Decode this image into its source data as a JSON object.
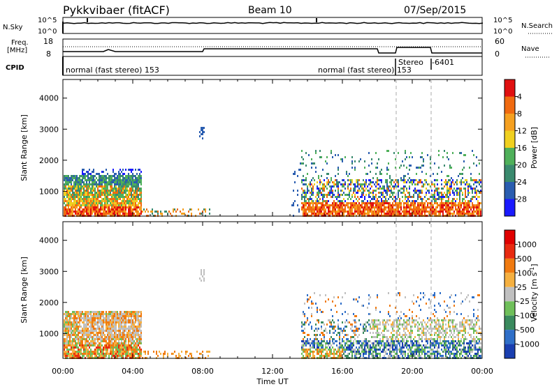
{
  "header": {
    "station": "Pykkvibaer (fitACF)",
    "beam": "Beam 10",
    "date": "07/Sep/2015"
  },
  "strips": {
    "nsky_label": "N.Sky",
    "nsky_ticks": [
      "10^5",
      "10^0"
    ],
    "nsearch_label": "N.Search",
    "nsearch_ticks": [
      "10^5",
      "10^0"
    ],
    "freq_label_1": "Freq.",
    "freq_label_2": "[MHz]",
    "freq_ticks": [
      "18",
      "8"
    ],
    "nave_label": "Nave",
    "nave_ticks": [
      "60",
      "0"
    ],
    "cpid_label": "CPID",
    "cpid_segments": [
      {
        "text": "normal (fast stereo) 153",
        "start_h": 0
      },
      {
        "text": "normal (fast stereo) 153",
        "start_h": 14.4
      },
      {
        "text": "Stereo",
        "start_h": 19.1
      },
      {
        "text": "-6401",
        "start_h": 21
      }
    ]
  },
  "chart_data": [
    {
      "type": "heatmap",
      "name": "power",
      "ylabel": "Slant Range [km]",
      "ylim": [
        200,
        4600
      ],
      "yticks": [
        "1000",
        "2000",
        "3000",
        "4000"
      ],
      "xlim_hours": [
        0,
        24
      ],
      "colorbar": {
        "label": "Power [dB]",
        "ticks": [
          "4",
          "8",
          "12",
          "16",
          "20",
          "24",
          "28"
        ],
        "colors": [
          "#1a1aff",
          "#2a5db0",
          "#3a8a6e",
          "#4fb05a",
          "#f0d020",
          "#f5a020",
          "#f06a10",
          "#e01010"
        ]
      },
      "regions": [
        {
          "t": [
            0,
            4.4
          ],
          "r": [
            200,
            1750
          ],
          "dominant": "green-orange-red near ground"
        },
        {
          "t": [
            13.6,
            24
          ],
          "r": [
            200,
            1500
          ],
          "dominant": "red-orange near 500 km"
        }
      ]
    },
    {
      "type": "heatmap",
      "name": "velocity",
      "ylabel": "Slant Range [km]",
      "ylim": [
        200,
        4600
      ],
      "yticks": [
        "1000",
        "2000",
        "3000",
        "4000"
      ],
      "xlim_hours": [
        0,
        24
      ],
      "xlabel": "Time UT",
      "xticks": [
        "00:00",
        "04:00",
        "08:00",
        "12:00",
        "16:00",
        "20:00",
        "00:00"
      ],
      "colorbar": {
        "label": "Velocity [m s",
        "label_sup": "-1",
        "label_tail": "]",
        "ticks": [
          "1000",
          "500",
          "100",
          "25",
          "-25",
          "-100",
          "-500",
          "-1000"
        ],
        "colors": [
          "#1a3fb0",
          "#2f6fc8",
          "#3a8a5e",
          "#6fbf5a",
          "#c0c0c0",
          "#f5b040",
          "#f07a10",
          "#e82a10",
          "#e00000"
        ]
      }
    }
  ]
}
